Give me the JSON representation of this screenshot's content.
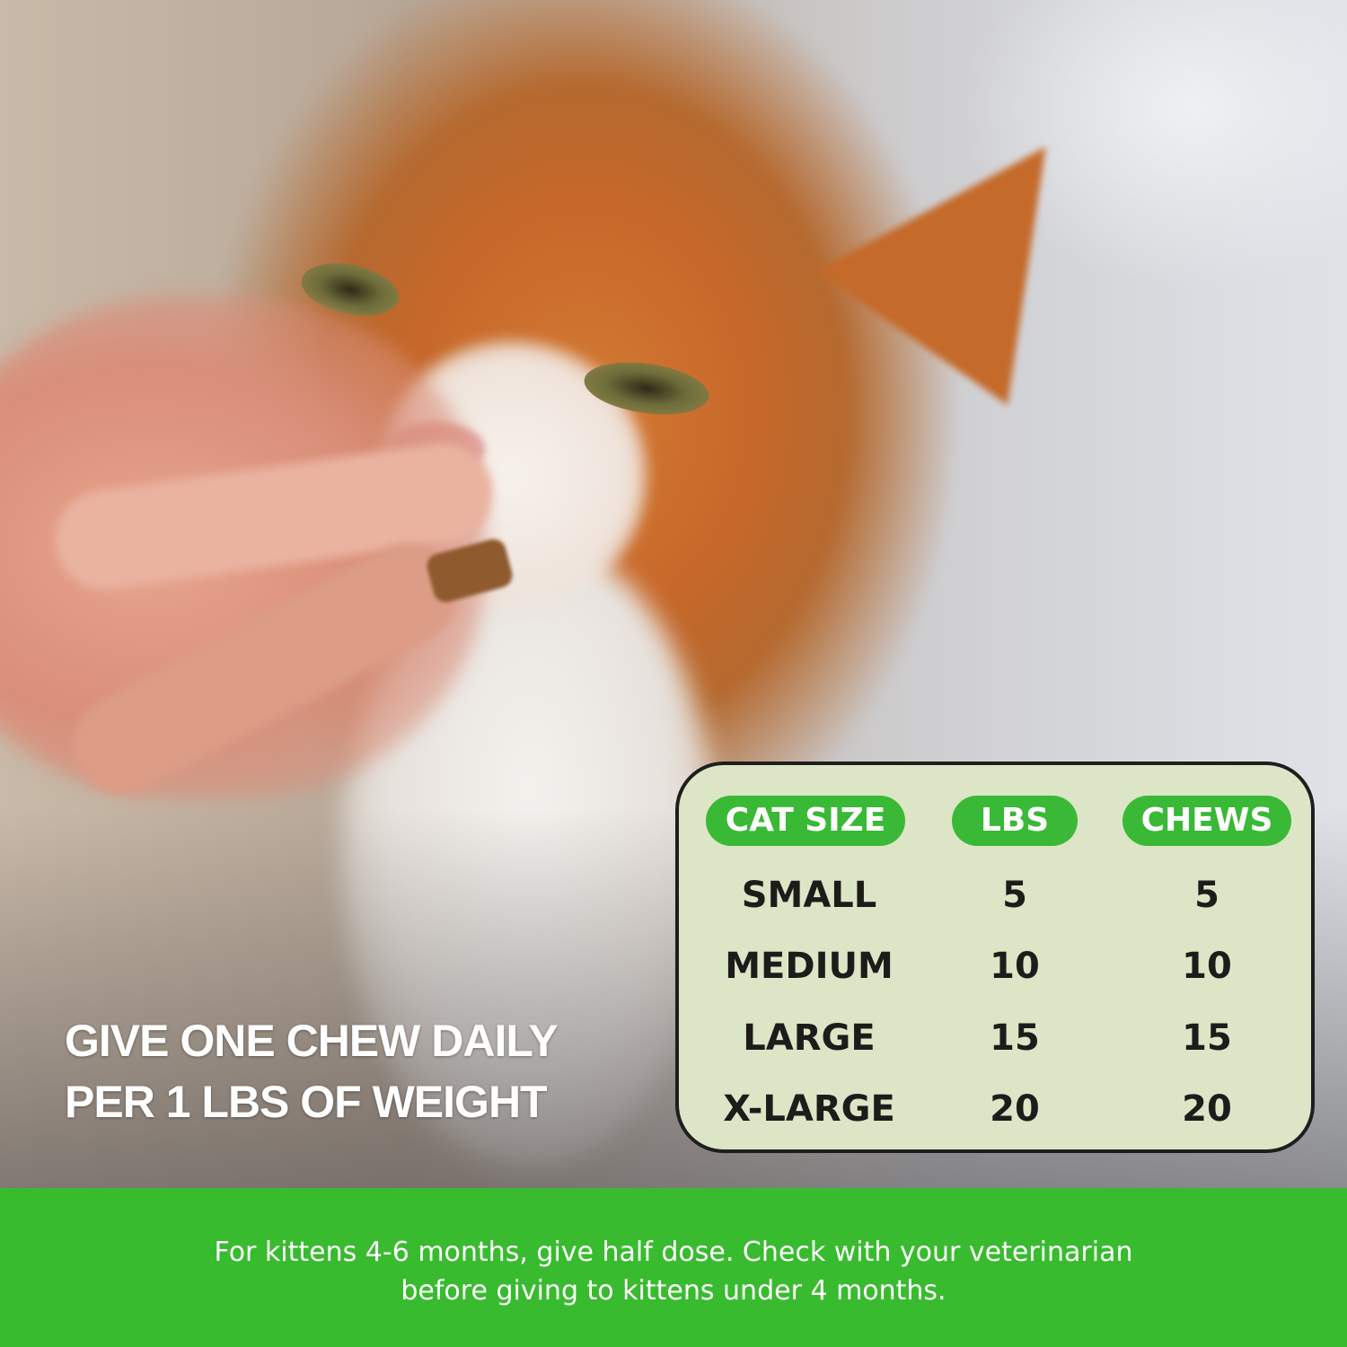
{
  "headline": {
    "line1": "GIVE ONE CHEW DAILY",
    "line2": "PER 1 LBS OF WEIGHT"
  },
  "table": {
    "headers": [
      "CAT SIZE",
      "LBS",
      "CHEWS"
    ],
    "rows": [
      [
        "SMALL",
        "5",
        "5"
      ],
      [
        "MEDIUM",
        "10",
        "10"
      ],
      [
        "LARGE",
        "15",
        "15"
      ],
      [
        "X-LARGE",
        "20",
        "20"
      ]
    ]
  },
  "footer": {
    "line1": "For kittens 4-6 months, give half dose. Check with your veterinarian",
    "line2": "before giving to kittens under 4 months."
  },
  "colors": {
    "accent_green": "#39bb2f",
    "table_bg": "#dde5c7",
    "text_dark": "#1c1c1a"
  }
}
